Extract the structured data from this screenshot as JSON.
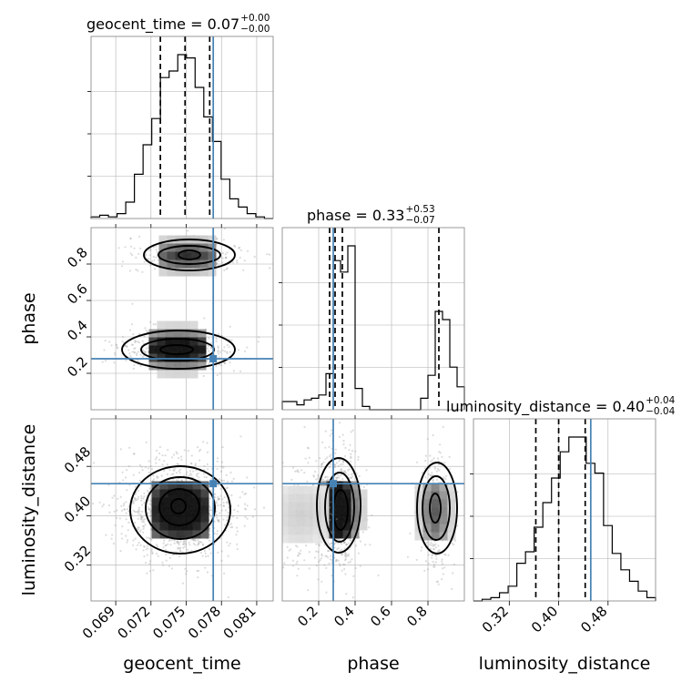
{
  "chart_data": {
    "type": "corner",
    "parameters": [
      "geocent_time",
      "phase",
      "luminosity_distance"
    ],
    "axis_labels": {
      "geocent_time": "geocent_time",
      "phase": "phase",
      "luminosity_distance": "luminosity_distance"
    },
    "titles": [
      {
        "param": "geocent_time",
        "prefix": "geocent_time = ",
        "value": "0.07",
        "plus": "+0.00",
        "minus": "−0.00"
      },
      {
        "param": "phase",
        "prefix": "phase = ",
        "value": "0.33",
        "plus": "+0.53",
        "minus": "−0.07"
      },
      {
        "param": "luminosity_distance",
        "prefix": "luminosity_distance = ",
        "value": "0.40",
        "plus": "+0.04",
        "minus": "−0.04"
      }
    ],
    "ranges": {
      "geocent_time": [
        0.0669,
        0.0824
      ],
      "phase": [
        0.0,
        1.0
      ],
      "luminosity_distance": [
        0.262,
        0.557
      ]
    },
    "ticks": {
      "geocent_time": [
        "0.069",
        "0.072",
        "0.075",
        "0.078",
        "0.081"
      ],
      "phase": [
        "0.2",
        "0.4",
        "0.6",
        "0.8"
      ],
      "luminosity_distance": [
        "0.32",
        "0.40",
        "0.48"
      ]
    },
    "truths": {
      "geocent_time": 0.0773,
      "phase": 0.28,
      "luminosity_distance": 0.452
    },
    "quantiles": {
      "geocent_time": [
        0.0728,
        0.0749,
        0.077
      ],
      "phase": [
        0.26,
        0.29,
        0.33,
        0.86
      ],
      "luminosity_distance": [
        0.363,
        0.4,
        0.443
      ]
    },
    "histograms": {
      "geocent_time": [
        0.01,
        0.02,
        0.01,
        0.03,
        0.1,
        0.27,
        0.45,
        0.61,
        0.86,
        0.9,
        1.0,
        0.98,
        0.8,
        0.62,
        0.47,
        0.24,
        0.12,
        0.07,
        0.03,
        0.01,
        0.0
      ],
      "phase": [
        0.05,
        0.05,
        0.03,
        0.06,
        0.07,
        0.09,
        0.22,
        0.91,
        0.84,
        1.0,
        0.13,
        0.02,
        0.0,
        0.0,
        0.0,
        0.0,
        0.0,
        0.0,
        0.0,
        0.07,
        0.21,
        0.6,
        0.55,
        0.26,
        0.14
      ],
      "luminosity_distance": [
        0.0,
        0.01,
        0.02,
        0.05,
        0.09,
        0.23,
        0.3,
        0.45,
        0.6,
        0.75,
        0.91,
        1.0,
        1.0,
        0.84,
        0.78,
        0.46,
        0.29,
        0.19,
        0.12,
        0.06,
        0.02
      ]
    },
    "grid": true
  }
}
